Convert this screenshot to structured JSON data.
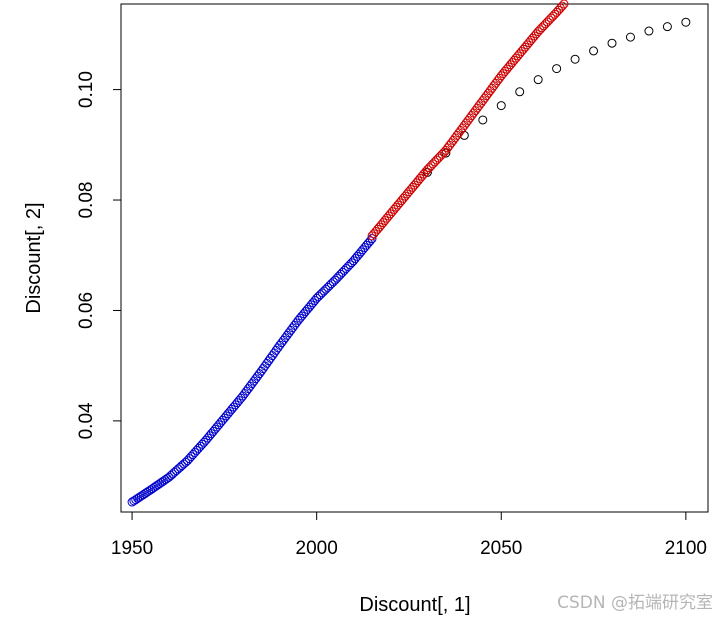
{
  "watermark": "CSDN @拓端研究室",
  "chart_data": {
    "type": "scatter",
    "xlabel": "Discount[, 1]",
    "ylabel": "Discount[, 2]",
    "xlim": [
      1947,
      2106
    ],
    "ylim": [
      0.0235,
      0.1155
    ],
    "xticks": [
      "1950",
      "2000",
      "2050",
      "2100"
    ],
    "yticks": [
      "0.04",
      "0.06",
      "0.08",
      "0.10"
    ],
    "colors": {
      "original": "#000000",
      "observed": "#0000cc",
      "projected": "#cc0000"
    },
    "series": [
      {
        "key": "original",
        "color": "#000000",
        "x": [
          2030,
          2035,
          2040,
          2045,
          2050,
          2055,
          2060,
          2065,
          2070,
          2075,
          2080,
          2085,
          2090,
          2095,
          2100
        ],
        "y": [
          0.085,
          0.0885,
          0.0917,
          0.0945,
          0.0971,
          0.0996,
          0.1018,
          0.1038,
          0.1055,
          0.107,
          0.1084,
          0.1095,
          0.1106,
          0.1114,
          0.1122
        ]
      },
      {
        "key": "observed",
        "color": "#0000cc",
        "x_start": 1950,
        "x_end": 2015,
        "knots_x": [
          1950,
          1955,
          1960,
          1965,
          1970,
          1975,
          1980,
          1985,
          1990,
          1995,
          2000,
          2005,
          2010,
          2015
        ],
        "knots_y": [
          0.0253,
          0.0275,
          0.0298,
          0.0328,
          0.0365,
          0.0405,
          0.0445,
          0.049,
          0.0537,
          0.0582,
          0.0622,
          0.0655,
          0.069,
          0.073
        ]
      },
      {
        "key": "projected",
        "color": "#cc0000",
        "x_start": 2015,
        "x_end": 2067,
        "knots_x": [
          2015,
          2020,
          2025,
          2030,
          2035,
          2040,
          2045,
          2050,
          2055,
          2060,
          2065,
          2067
        ],
        "knots_y": [
          0.0735,
          0.0775,
          0.0815,
          0.0855,
          0.089,
          0.0935,
          0.098,
          0.1025,
          0.1065,
          0.1105,
          0.114,
          0.1155
        ]
      }
    ]
  }
}
